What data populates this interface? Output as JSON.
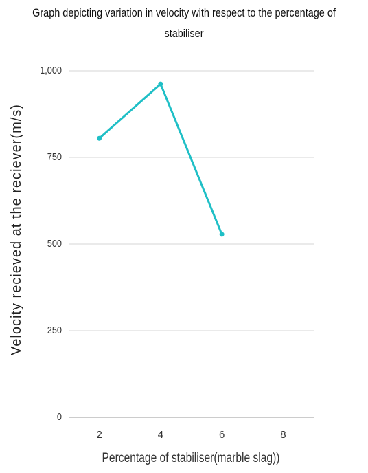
{
  "chart_data": {
    "type": "line",
    "title": "Graph depicting variation in velocity with respect to the percentage of stabiliser",
    "x_label": "Percentage of stabiliser(marble slag))",
    "y_label": "Velocity  recieved at the reciever(m/s)",
    "categories": [
      "2",
      "4",
      "6",
      "8"
    ],
    "values": [
      805,
      962,
      528,
      null
    ],
    "color": "#1fbfc6",
    "ylim": [
      0,
      1000
    ],
    "yticks": [
      0,
      250,
      500,
      750,
      {
        "value": 1000,
        "label": "1,000"
      }
    ],
    "grid": true
  }
}
